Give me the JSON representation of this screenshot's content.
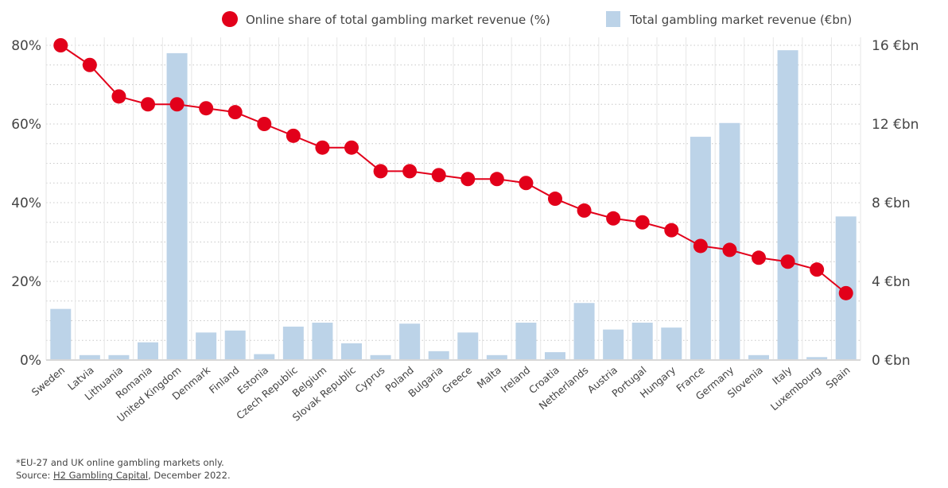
{
  "chart_data": {
    "type": "bar+line",
    "categories": [
      "Sweden",
      "Latvia",
      "Lithuania",
      "Romania",
      "United Kingdom",
      "Denmark",
      "Finland",
      "Estonia",
      "Czech Republic",
      "Belgium",
      "Slovak Republic",
      "Cyprus",
      "Poland",
      "Bulgaria",
      "Greece",
      "Malta",
      "Ireland",
      "Croatia",
      "Netherlands",
      "Austria",
      "Portugal",
      "Hungary",
      "France",
      "Germany",
      "Slovenia",
      "Italy",
      "Luxembourg",
      "Spain"
    ],
    "series": [
      {
        "name": "Online share of total gambling market revenue (%)",
        "type": "line",
        "axis": "left",
        "color": "#e2001a",
        "values": [
          80,
          75,
          67,
          65,
          65,
          64,
          63,
          60,
          57,
          54,
          54,
          48,
          48,
          47,
          46,
          46,
          45,
          41,
          38,
          36,
          35,
          33,
          29,
          28,
          26,
          25,
          23,
          17
        ]
      },
      {
        "name": "Total gambling market revenue (€bn)",
        "type": "bar",
        "axis": "right",
        "color": "#bcd3e8",
        "values": [
          2.6,
          0.25,
          0.25,
          0.9,
          15.6,
          1.4,
          1.5,
          0.3,
          1.7,
          1.9,
          0.85,
          0.25,
          1.85,
          0.45,
          1.4,
          0.25,
          1.9,
          0.4,
          2.9,
          1.55,
          1.9,
          1.65,
          11.35,
          12.05,
          0.25,
          15.75,
          0.15,
          7.3
        ]
      }
    ],
    "left_axis": {
      "ylim": [
        0,
        80
      ],
      "ticks": [
        "0%",
        "20%",
        "40%",
        "60%",
        "80%"
      ]
    },
    "right_axis": {
      "ylim": [
        0,
        16
      ],
      "ticks": [
        "0 €bn",
        "4 €bn",
        "8 €bn",
        "12 €bn",
        "16 €bn"
      ]
    },
    "grid": true,
    "legend_position": "top"
  },
  "footnote": {
    "note": "*EU-27 and UK online gambling markets only.",
    "source_prefix": "Source: ",
    "source_link": "H2 Gambling Capital",
    "source_suffix": ", December 2022."
  }
}
